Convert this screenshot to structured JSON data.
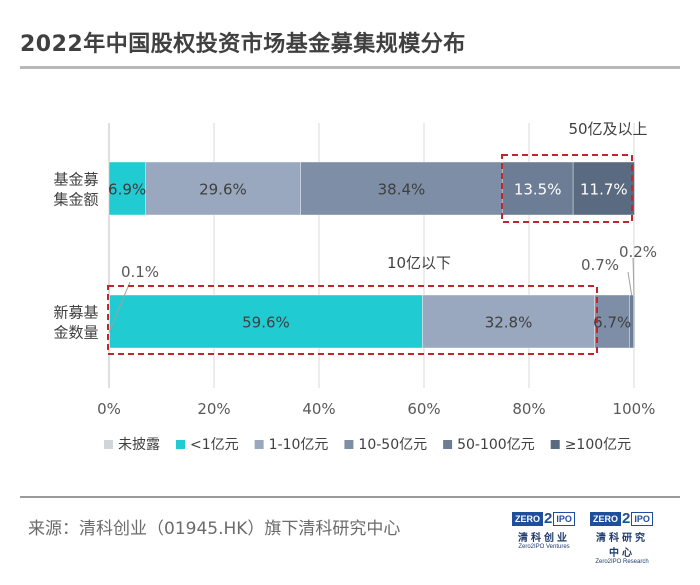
{
  "title": "2022年中国股权投资市场基金募集规模分布",
  "source": "来源：清科创业（01945.HK）旗下清科研究中心",
  "colors": {
    "未披露": "#d0d5dc",
    "<1亿元": "#21cbd2",
    "1-10亿元": "#99a8be",
    "10-50亿元": "#7d8ea6",
    "50-100亿元": "#6c7d95",
    "≥100亿元": "#5a6a80",
    "highlight": "#c0272d"
  },
  "logos": [
    {
      "left": "ZERO",
      "two": "2",
      "right": "IPO",
      "cn": "清科创业",
      "en": "Zero2IPO Ventures"
    },
    {
      "left": "ZERO",
      "two": "2",
      "right": "IPO",
      "cn": "清科研究中心",
      "en": "Zero2IPO Research"
    }
  ],
  "chart_data": {
    "type": "bar",
    "orientation": "horizontal",
    "stacked": true,
    "title": "2022年中国股权投资市场基金募集规模分布",
    "categories": [
      "基金募集金额",
      "新募基金数量"
    ],
    "category_labels": [
      [
        "基金募",
        "集金额"
      ],
      [
        "新募基",
        "金数量"
      ]
    ],
    "series": [
      {
        "name": "未披露",
        "values": [
          0,
          0.1
        ],
        "labels": [
          "",
          "0.1%"
        ]
      },
      {
        "name": "<1亿元",
        "values": [
          6.9,
          59.6
        ],
        "labels": [
          "6.9%",
          "59.6%"
        ]
      },
      {
        "name": "1-10亿元",
        "values": [
          29.6,
          32.8
        ],
        "labels": [
          "29.6%",
          "32.8%"
        ]
      },
      {
        "name": "10-50亿元",
        "values": [
          38.4,
          6.7
        ],
        "labels": [
          "38.4%",
          "6.7%"
        ]
      },
      {
        "name": "50-100亿元",
        "values": [
          13.5,
          0.7
        ],
        "labels": [
          "13.5%",
          "0.7%"
        ]
      },
      {
        "name": "≥100亿元",
        "values": [
          11.7,
          0.2
        ],
        "labels": [
          "11.7%",
          "0.2%"
        ]
      }
    ],
    "xlim": [
      0,
      100
    ],
    "xticks": [
      "0%",
      "20%",
      "40%",
      "60%",
      "80%",
      "100%"
    ],
    "grid": true,
    "legend": "bottom",
    "annotations": [
      "50亿及以上",
      "10亿以下"
    ]
  }
}
